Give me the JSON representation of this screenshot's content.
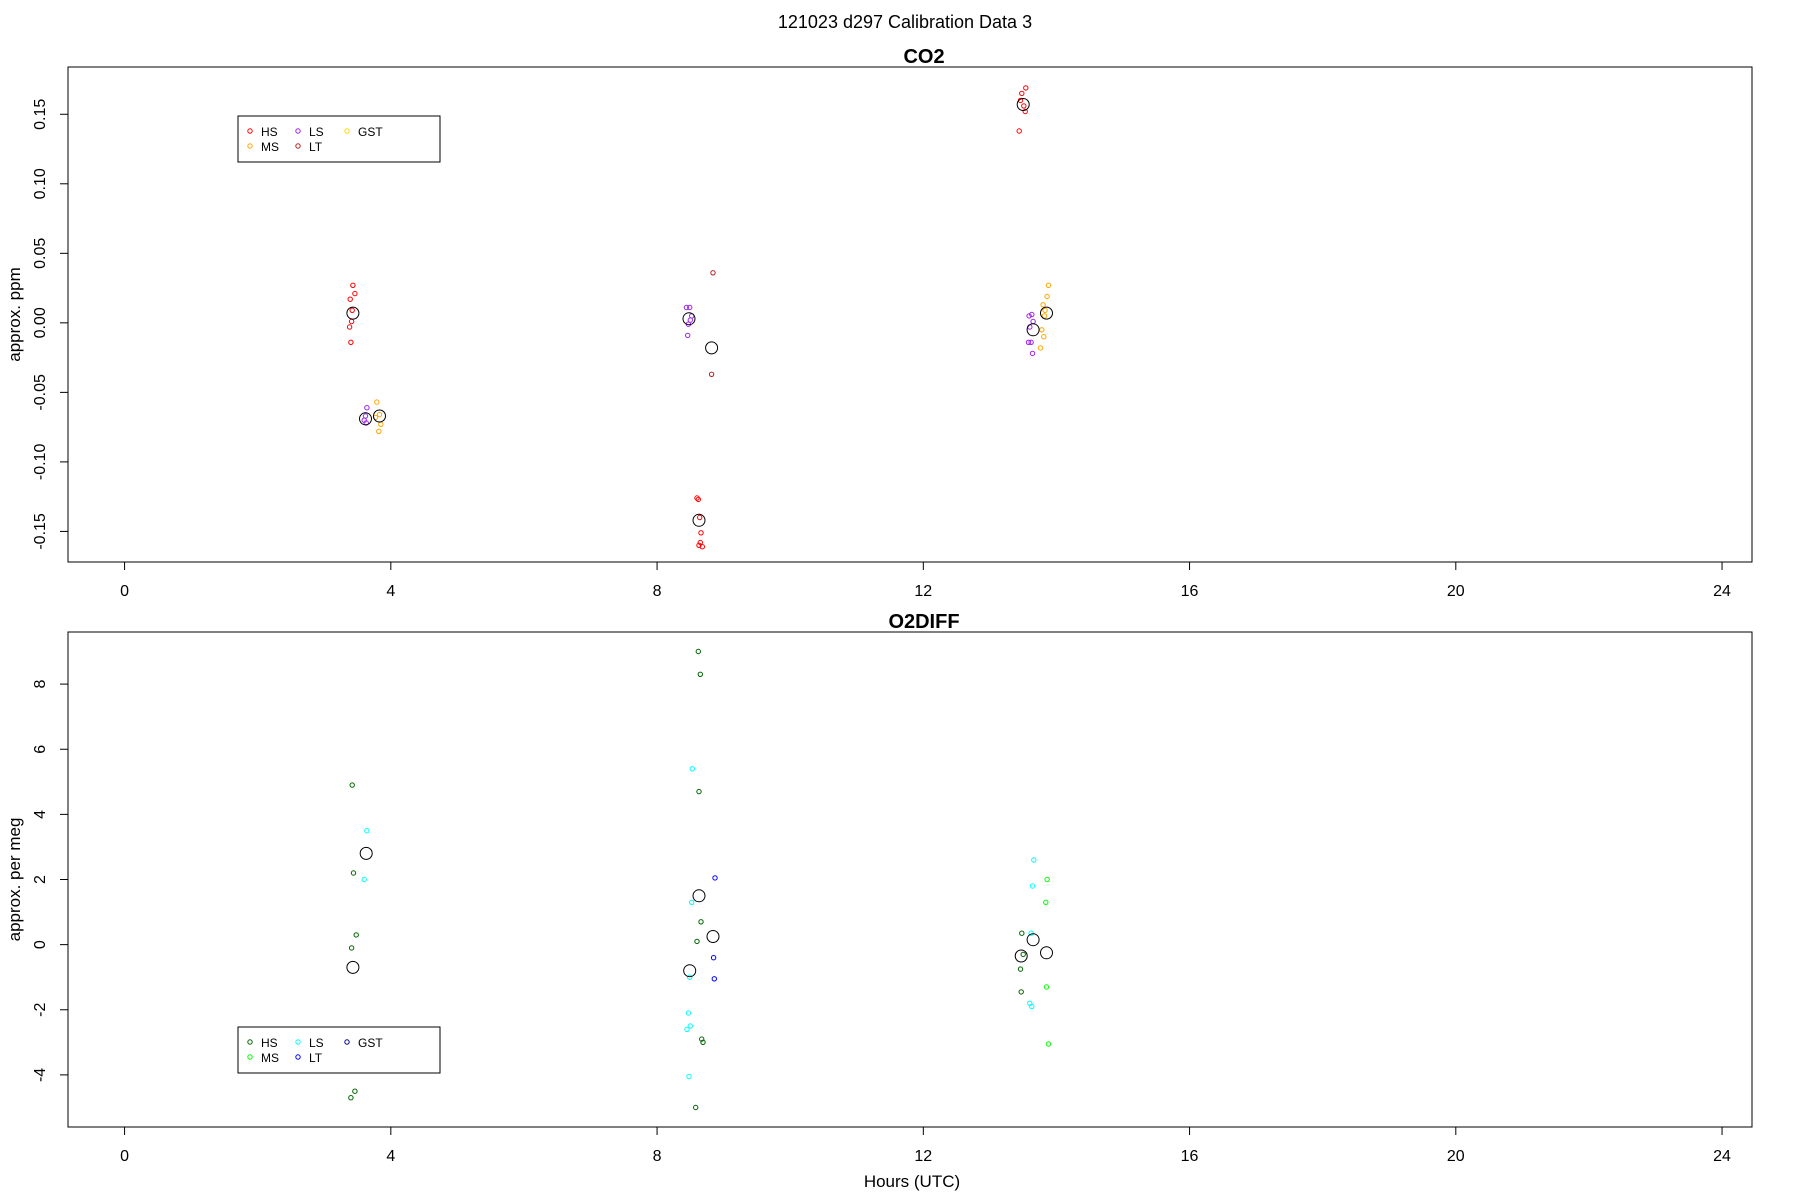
{
  "figure": {
    "title": "121023   d297   Calibration Data 3"
  },
  "chart_data": [
    {
      "type": "scatter",
      "title": "CO2",
      "xlabel": "",
      "ylabel": "approx. ppm",
      "xlim": [
        -0.85,
        24.45
      ],
      "ylim": [
        -0.172,
        0.184
      ],
      "xticks": [
        0,
        4,
        8,
        12,
        16,
        20,
        24
      ],
      "yticks": [
        -0.15,
        -0.1,
        -0.05,
        0,
        0.05,
        0.1,
        0.15
      ],
      "ytick_labels": [
        "-0.15",
        "-0.10",
        "-0.05",
        "0.00",
        "0.05",
        "0.10",
        "0.15"
      ],
      "legend": {
        "position": "top-left",
        "entries": [
          {
            "label": "HS",
            "color": "#ff0000"
          },
          {
            "label": "MS",
            "color": "#ffa500"
          },
          {
            "label": "LS",
            "color": "#a020f0"
          },
          {
            "label": "LT",
            "color": "#b22222"
          },
          {
            "label": "GST",
            "color": "#ffd700"
          }
        ]
      },
      "series": [
        {
          "name": "HS",
          "color": "#ff0000",
          "points": [
            [
              3.43,
              0.027
            ],
            [
              3.46,
              0.021
            ],
            [
              3.39,
              0.017
            ],
            [
              3.42,
              0.009
            ],
            [
              3.41,
              0.001
            ],
            [
              3.38,
              -0.003
            ],
            [
              3.4,
              -0.014
            ],
            [
              8.6,
              -0.126
            ],
            [
              8.62,
              -0.127
            ],
            [
              8.64,
              -0.14
            ],
            [
              8.66,
              -0.151
            ],
            [
              8.65,
              -0.158
            ],
            [
              8.68,
              -0.161
            ],
            [
              8.63,
              -0.16
            ],
            [
              13.44,
              0.138
            ],
            [
              13.48,
              0.165
            ],
            [
              13.54,
              0.169
            ],
            [
              13.51,
              0.156
            ],
            [
              13.53,
              0.152
            ],
            [
              13.46,
              0.16
            ]
          ]
        },
        {
          "name": "MS",
          "color": "#ffa500",
          "points": [
            [
              3.79,
              -0.057
            ],
            [
              3.83,
              -0.066
            ],
            [
              3.85,
              -0.073
            ],
            [
              3.82,
              -0.078
            ],
            [
              3.77,
              -0.068
            ],
            [
              13.8,
              0.013
            ],
            [
              13.83,
              0.009
            ],
            [
              13.86,
              0.019
            ],
            [
              13.88,
              0.027
            ],
            [
              13.82,
              0.005
            ],
            [
              13.78,
              -0.005
            ],
            [
              13.76,
              -0.018
            ],
            [
              13.81,
              -0.01
            ]
          ]
        },
        {
          "name": "LS",
          "color": "#a020f0",
          "points": [
            [
              3.64,
              -0.061
            ],
            [
              3.62,
              -0.067
            ],
            [
              3.6,
              -0.07
            ],
            [
              3.63,
              -0.072
            ],
            [
              8.44,
              0.011
            ],
            [
              8.49,
              0.011
            ],
            [
              8.52,
              0.005
            ],
            [
              8.5,
              0.002
            ],
            [
              8.47,
              -0.001
            ],
            [
              8.46,
              -0.009
            ],
            [
              13.59,
              0.005
            ],
            [
              13.63,
              0.006
            ],
            [
              13.65,
              0.001
            ],
            [
              13.6,
              -0.003
            ],
            [
              13.58,
              -0.014
            ],
            [
              13.62,
              -0.014
            ],
            [
              13.64,
              -0.022
            ]
          ]
        },
        {
          "name": "LT",
          "color": "#b22222",
          "points": [
            [
              8.84,
              0.036
            ],
            [
              8.82,
              -0.037
            ]
          ]
        },
        {
          "name": "GST",
          "color": "#ffd700",
          "points": []
        },
        {
          "name": "",
          "color": "#000000",
          "role": "mean",
          "points": [
            [
              3.43,
              0.007
            ],
            [
              3.62,
              -0.069
            ],
            [
              3.83,
              -0.067
            ],
            [
              8.48,
              0.003
            ],
            [
              8.82,
              -0.018
            ],
            [
              8.63,
              -0.142
            ],
            [
              13.5,
              0.157
            ],
            [
              13.85,
              0.007
            ],
            [
              13.65,
              -0.005
            ]
          ]
        }
      ]
    },
    {
      "type": "scatter",
      "title": "O2DIFF",
      "xlabel": "Hours (UTC)",
      "ylabel": "approx. per meg",
      "xlim": [
        -0.85,
        24.45
      ],
      "ylim": [
        -5.6,
        9.6
      ],
      "xticks": [
        0,
        4,
        8,
        12,
        16,
        20,
        24
      ],
      "yticks": [
        -4,
        -2,
        0,
        2,
        4,
        6,
        8
      ],
      "ytick_labels": [
        "-4",
        "-2",
        "0",
        "2",
        "4",
        "6",
        "8"
      ],
      "legend": {
        "position": "bottom-left",
        "entries": [
          {
            "label": "HS",
            "color": "#006400"
          },
          {
            "label": "MS",
            "color": "#00ff00"
          },
          {
            "label": "LS",
            "color": "#00ffff"
          },
          {
            "label": "LT",
            "color": "#0000ff"
          },
          {
            "label": "GST",
            "color": "#000080"
          }
        ]
      },
      "series": [
        {
          "name": "HS",
          "color": "#006400",
          "points": [
            [
              3.42,
              4.9
            ],
            [
              3.44,
              2.2
            ],
            [
              3.48,
              0.3
            ],
            [
              3.41,
              -0.1
            ],
            [
              3.46,
              -4.5
            ],
            [
              3.4,
              -4.7
            ],
            [
              8.62,
              9.0
            ],
            [
              8.65,
              8.3
            ],
            [
              8.63,
              4.7
            ],
            [
              8.66,
              0.7
            ],
            [
              8.6,
              0.1
            ],
            [
              8.67,
              -2.9
            ],
            [
              8.69,
              -3.0
            ],
            [
              8.58,
              -5.0
            ],
            [
              13.48,
              0.35
            ],
            [
              13.46,
              -0.75
            ],
            [
              13.5,
              -0.3
            ],
            [
              13.47,
              -1.45
            ]
          ]
        },
        {
          "name": "MS",
          "color": "#00ff00",
          "points": [
            [
              13.86,
              2.0
            ],
            [
              13.84,
              1.3
            ],
            [
              13.85,
              -1.3
            ],
            [
              13.88,
              -3.05
            ]
          ]
        },
        {
          "name": "LS",
          "color": "#00ffff",
          "points": [
            [
              3.64,
              3.5
            ],
            [
              3.6,
              2.0
            ],
            [
              8.53,
              5.4
            ],
            [
              8.52,
              1.3
            ],
            [
              8.49,
              -1.0
            ],
            [
              8.47,
              -2.1
            ],
            [
              8.5,
              -2.5
            ],
            [
              8.45,
              -2.6
            ],
            [
              8.48,
              -4.05
            ],
            [
              13.66,
              2.6
            ],
            [
              13.64,
              1.8
            ],
            [
              13.62,
              0.35
            ],
            [
              13.6,
              -1.8
            ],
            [
              13.63,
              -1.9
            ]
          ]
        },
        {
          "name": "LT",
          "color": "#0000ff",
          "points": [
            [
              8.87,
              2.05
            ],
            [
              8.85,
              -0.4
            ],
            [
              8.86,
              -1.05
            ]
          ]
        },
        {
          "name": "GST",
          "color": "#000080",
          "points": []
        },
        {
          "name": "",
          "color": "#000000",
          "role": "mean",
          "points": [
            [
              3.43,
              -0.7
            ],
            [
              3.63,
              2.8
            ],
            [
              8.49,
              -0.8
            ],
            [
              8.63,
              1.5
            ],
            [
              8.84,
              0.25
            ],
            [
              13.47,
              -0.35
            ],
            [
              13.65,
              0.15
            ],
            [
              13.85,
              -0.25
            ]
          ]
        }
      ]
    }
  ]
}
